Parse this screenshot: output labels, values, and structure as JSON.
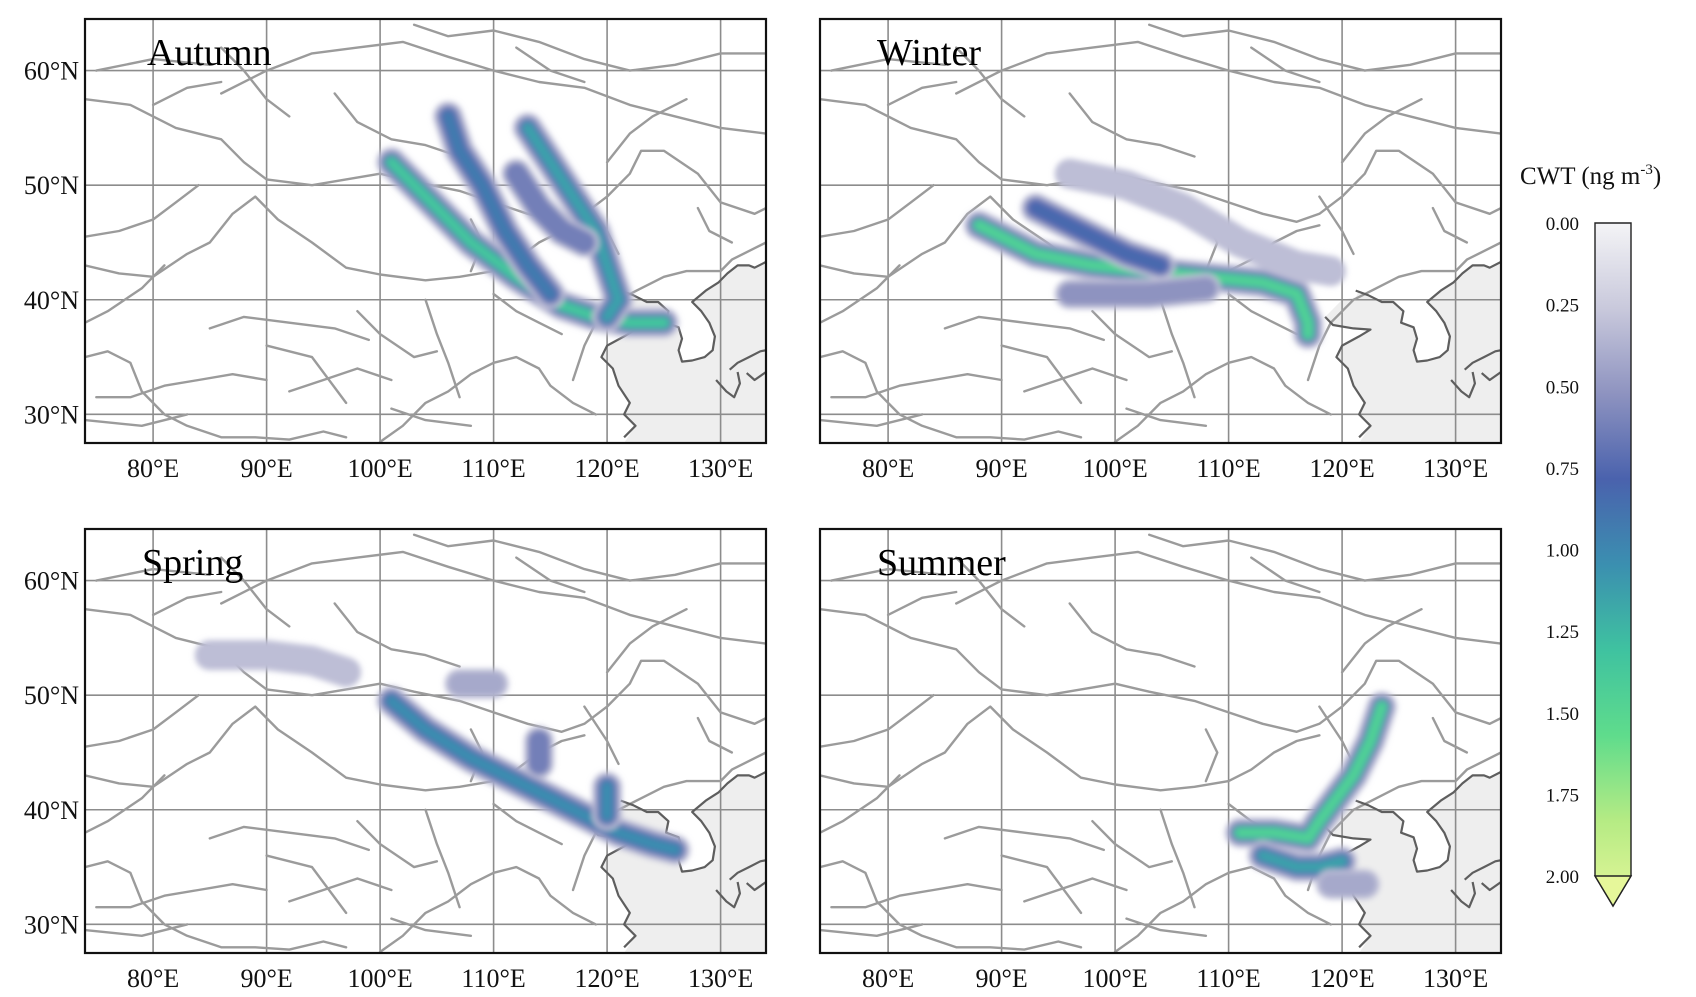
{
  "figure": {
    "panels": [
      {
        "id": "autumn",
        "title": "Autumn"
      },
      {
        "id": "winter",
        "title": "Winter"
      },
      {
        "id": "spring",
        "title": "Spring"
      },
      {
        "id": "summer",
        "title": "Summer"
      }
    ],
    "lon_ticks": [
      "80°E",
      "90°E",
      "100°E",
      "110°E",
      "120°E",
      "130°E"
    ],
    "lat_ticks": [
      "60°N",
      "50°N",
      "40°N",
      "30°N"
    ],
    "colorbar": {
      "title": "CWT (ng m-3)",
      "title_main": "CWT (ng m",
      "title_sup": "-3",
      "title_end": ")",
      "ticks": [
        "0.00",
        "0.25",
        "0.50",
        "0.75",
        "1.00",
        "1.25",
        "1.50",
        "1.75",
        "2.00"
      ],
      "extend": "max",
      "colors": [
        "#f4f4f6",
        "#c9c9dc",
        "#8e93c0",
        "#4a62ad",
        "#3b8fb0",
        "#3fc2a0",
        "#5fdc8c",
        "#b5eb84",
        "#e6f79a"
      ]
    }
  },
  "chart_data": {
    "type": "heatmap",
    "description_units": "CWT (ng m-3)",
    "lon_range": [
      74,
      134
    ],
    "lat_range": [
      27.5,
      64.5
    ],
    "color_range": [
      0,
      2
    ],
    "panels": [
      {
        "title": "Autumn",
        "tracks": [
          {
            "points": [
              [
                101,
                52
              ],
              [
                104,
                49
              ],
              [
                108,
                45
              ],
              [
                112,
                42
              ],
              [
                116,
                39.5
              ],
              [
                119,
                38.5
              ],
              [
                122,
                38
              ],
              [
                125,
                38
              ]
            ],
            "value": 1.3
          },
          {
            "points": [
              [
                106,
                56
              ],
              [
                107,
                53
              ],
              [
                109,
                50
              ],
              [
                111,
                46
              ],
              [
                113,
                43
              ],
              [
                115,
                40.5
              ]
            ],
            "value": 0.9
          },
          {
            "points": [
              [
                113,
                55
              ],
              [
                115,
                52
              ],
              [
                117,
                49
              ],
              [
                119,
                46
              ],
              [
                120,
                43
              ],
              [
                121,
                40
              ],
              [
                120,
                38.5
              ]
            ],
            "value": 1.1
          },
          {
            "points": [
              [
                112,
                51
              ],
              [
                114,
                48
              ],
              [
                116,
                46
              ],
              [
                118,
                45
              ]
            ],
            "value": 0.6
          }
        ]
      },
      {
        "title": "Winter",
        "tracks": [
          {
            "points": [
              [
                88,
                46.5
              ],
              [
                93,
                44
              ],
              [
                98,
                43
              ],
              [
                103,
                42.5
              ],
              [
                108,
                42
              ],
              [
                113,
                41.5
              ],
              [
                116,
                40.5
              ],
              [
                117,
                38
              ],
              [
                117,
                37
              ]
            ],
            "value": 1.4
          },
          {
            "points": [
              [
                93,
                48
              ],
              [
                97,
                46
              ],
              [
                101,
                44
              ],
              [
                104,
                43
              ]
            ],
            "value": 0.8
          },
          {
            "points": [
              [
                96,
                51
              ],
              [
                101,
                50
              ],
              [
                106,
                48
              ],
              [
                111,
                45
              ],
              [
                116,
                43
              ],
              [
                119,
                42.5
              ]
            ],
            "value": 0.3
          },
          {
            "points": [
              [
                96,
                40.5
              ],
              [
                103,
                40.5
              ],
              [
                108,
                41
              ]
            ],
            "value": 0.5
          }
        ]
      },
      {
        "title": "Spring",
        "tracks": [
          {
            "points": [
              [
                101,
                49.5
              ],
              [
                104,
                47
              ],
              [
                108,
                44.5
              ],
              [
                112,
                42.5
              ],
              [
                115,
                41
              ],
              [
                118,
                39.5
              ],
              [
                121,
                38
              ],
              [
                124,
                37
              ],
              [
                126,
                36.5
              ]
            ],
            "value": 1.0
          },
          {
            "points": [
              [
                85,
                53.5
              ],
              [
                90,
                53.5
              ],
              [
                94,
                53
              ],
              [
                97,
                52
              ]
            ],
            "value": 0.3
          },
          {
            "points": [
              [
                107,
                51
              ],
              [
                110,
                51
              ]
            ],
            "value": 0.4
          },
          {
            "points": [
              [
                114,
                46
              ],
              [
                114,
                44
              ]
            ],
            "value": 0.6
          },
          {
            "points": [
              [
                120,
                42
              ],
              [
                120,
                39.5
              ]
            ],
            "value": 1.0
          }
        ]
      },
      {
        "title": "Summer",
        "tracks": [
          {
            "points": [
              [
                111,
                38
              ],
              [
                114,
                38
              ],
              [
                117,
                37.5
              ],
              [
                118,
                39
              ],
              [
                119.5,
                41
              ],
              [
                121,
                43
              ],
              [
                122.5,
                46
              ],
              [
                123.5,
                49
              ]
            ],
            "value": 1.4
          },
          {
            "points": [
              [
                113,
                36
              ],
              [
                116,
                35
              ],
              [
                118,
                35
              ],
              [
                120,
                35.5
              ]
            ],
            "value": 1.1
          },
          {
            "points": [
              [
                119,
                33.5
              ],
              [
                122,
                33.5
              ]
            ],
            "value": 0.4
          }
        ]
      }
    ]
  }
}
